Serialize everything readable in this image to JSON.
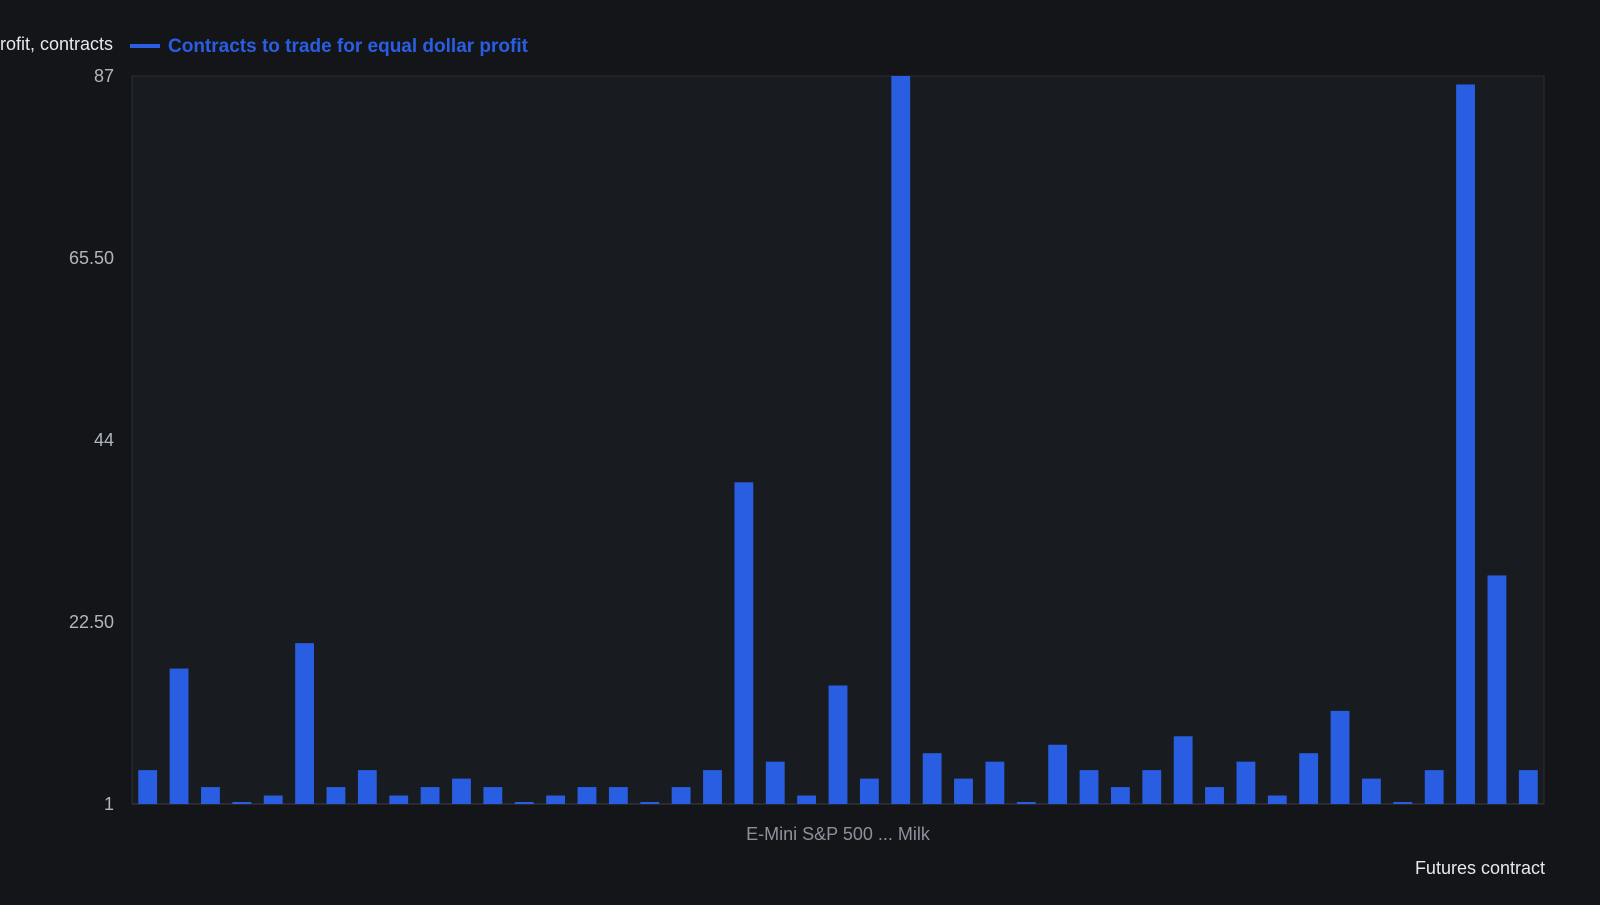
{
  "chart_data": {
    "type": "bar",
    "ylabel": "Contracts to trade for equal dollar profit, contracts",
    "xlabel": "Futures contract",
    "legend": [
      {
        "label": "Contracts to trade for equal dollar profit",
        "color": "#2a5ee2"
      }
    ],
    "legend_placement": "top-left",
    "ylim": [
      1,
      87
    ],
    "yticks": [
      "1",
      "22.50",
      "44",
      "65.50",
      "87"
    ],
    "grid": true,
    "bar_color": "#2a5ee2",
    "categories_partial": [
      "E-Mini S&P 500",
      "Milk"
    ],
    "values": [
      5,
      17,
      3,
      1,
      2,
      20,
      3,
      5,
      2,
      3,
      4,
      3,
      1,
      2,
      3,
      3,
      1,
      3,
      5,
      39,
      6,
      2,
      15,
      4,
      87,
      7,
      4,
      6,
      1,
      8,
      5,
      3,
      5,
      9,
      3,
      6,
      2,
      7,
      12,
      4,
      1,
      5,
      86,
      28,
      5
    ]
  },
  "x_tick_text": "E-Mini S&P 500 ... Milk"
}
